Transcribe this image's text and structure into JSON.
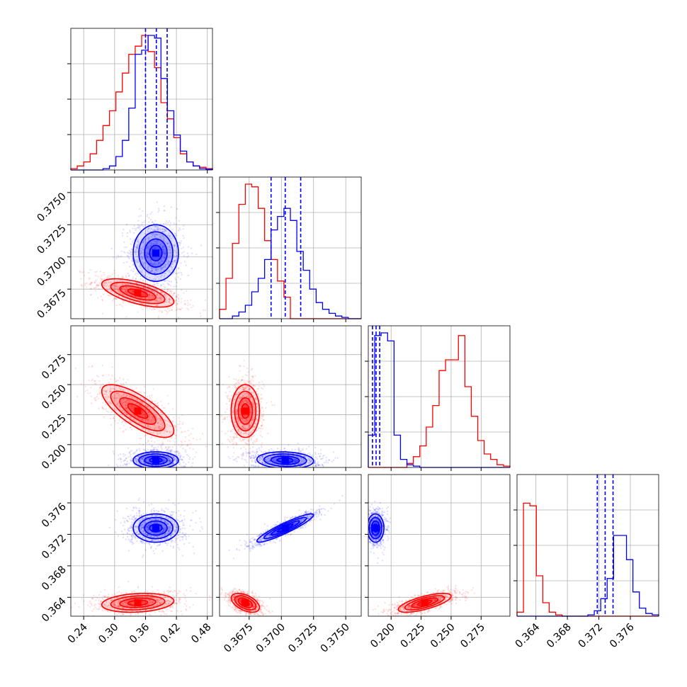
{
  "chart_data": {
    "type": "corner",
    "title": "",
    "colors": {
      "series_a": "#ff0000",
      "series_b": "#0000ff",
      "grid": "#b0b0b0",
      "frame": "#000000"
    },
    "series": [
      {
        "name": "red",
        "color": "#ff0000",
        "mean": [
          0.345,
          0.3672,
          0.228,
          0.3633
        ],
        "sd": [
          0.035,
          0.00055,
          0.011,
          0.0006
        ],
        "corr": [
          [
            1,
            -0.62,
            -0.75,
            0.2
          ],
          [
            -0.62,
            1,
            0,
            -0.5
          ],
          [
            -0.75,
            0,
            1,
            0.7
          ],
          [
            0.2,
            -0.5,
            0.7,
            1
          ]
        ]
      },
      {
        "name": "blue",
        "color": "#0000ff",
        "mean": [
          0.38,
          0.3703,
          0.187,
          0.3728
        ],
        "sd": [
          0.022,
          0.0011,
          0.0035,
          0.0009
        ],
        "corr": [
          [
            1,
            0,
            0,
            0
          ],
          [
            0,
            1,
            -0.1,
            0.92
          ],
          [
            0,
            -0.1,
            1,
            0
          ],
          [
            0,
            0.92,
            0,
            1
          ]
        ]
      }
    ],
    "parameters": [
      {
        "range": [
          0.215,
          0.49
        ],
        "ticks": [
          "0.24",
          "0.30",
          "0.36",
          "0.42",
          "0.48"
        ]
      },
      {
        "range": [
          0.3652,
          0.3762
        ],
        "ticks": [
          "0.3675",
          "0.3700",
          "0.3725",
          "0.3750"
        ]
      },
      {
        "range": [
          0.181,
          0.299
        ],
        "ticks": [
          "0.200",
          "0.225",
          "0.250",
          "0.275"
        ]
      },
      {
        "range": [
          0.3616,
          0.3796
        ],
        "ticks": [
          "0.364",
          "0.368",
          "0.372",
          "0.376"
        ]
      }
    ],
    "quantile_lines": [
      [
        0.36,
        0.381,
        0.402
      ],
      [
        0.3692,
        0.3703,
        0.3715
      ],
      [
        0.1845,
        0.1875,
        0.1905
      ],
      [
        0.3718,
        0.3728,
        0.3738
      ]
    ],
    "histograms": [
      {
        "red": [
          0.01,
          0.03,
          0.06,
          0.12,
          0.22,
          0.33,
          0.44,
          0.58,
          0.72,
          0.86,
          0.92,
          1.0,
          0.88,
          0.76,
          0.5,
          0.38,
          0.24,
          0.12,
          0.06,
          0.03,
          0.02,
          0.01
        ],
        "blue": [
          0,
          0,
          0,
          0,
          0,
          0.01,
          0.03,
          0.1,
          0.22,
          0.46,
          0.86,
          0.89,
          1.0,
          0.98,
          0.68,
          0.44,
          0.26,
          0.14,
          0.06,
          0.03,
          0.01,
          0.005
        ]
      },
      {
        "red": [
          0.07,
          0.3,
          0.56,
          0.85,
          1.0,
          0.98,
          0.82,
          0.58,
          0.44,
          0.28,
          0.16,
          0,
          0,
          0,
          0,
          0,
          0,
          0,
          0,
          0,
          0,
          0
        ],
        "blue": [
          0,
          0,
          0.02,
          0.05,
          0.1,
          0.2,
          0.3,
          0.44,
          0.66,
          0.76,
          0.82,
          0.73,
          0.5,
          0.36,
          0.22,
          0.12,
          0.07,
          0.04,
          0.02,
          0.01,
          0,
          0
        ]
      },
      {
        "red": [
          0,
          0,
          0,
          0,
          0,
          0,
          0.03,
          0.08,
          0.16,
          0.3,
          0.46,
          0.72,
          0.8,
          0.8,
          0.98,
          0.6,
          0.38,
          0.2,
          0.1,
          0.06,
          0.02,
          0.01
        ],
        "blue": [
          0.24,
          0.98,
          1.0,
          0.94,
          0.24,
          0.06,
          0.02,
          0.01,
          0,
          0,
          0,
          0,
          0,
          0,
          0,
          0,
          0,
          0,
          0,
          0,
          0,
          0
        ]
      },
      {
        "red": [
          0.03,
          0.84,
          0.82,
          0.3,
          0.1,
          0.03,
          0.01,
          0,
          0,
          0,
          0,
          0,
          0,
          0,
          0,
          0,
          0,
          0,
          0,
          0,
          0,
          0
        ],
        "blue": [
          0,
          0,
          0,
          0,
          0,
          0,
          0,
          0,
          0,
          0,
          0,
          0.01,
          0.04,
          0.13,
          0.28,
          0.6,
          0.6,
          0.42,
          0.18,
          0.06,
          0.02,
          0.01
        ]
      }
    ]
  }
}
